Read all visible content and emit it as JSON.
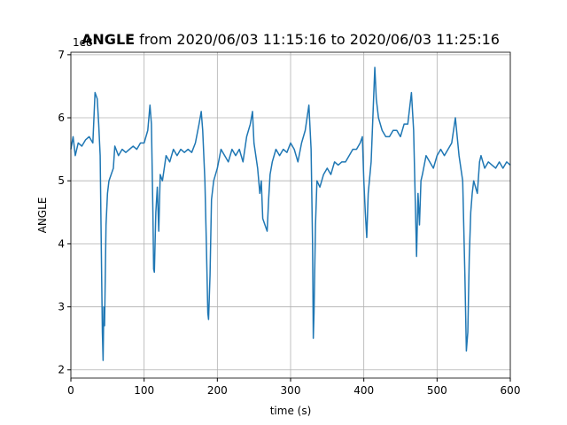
{
  "chart_data": {
    "type": "line",
    "title_bold": "ANGLE",
    "title": "from 2020/06/03 11:15:16 to 2020/06/03 11:25:16",
    "x_label": "time (s)",
    "y_label": "ANGLE",
    "y_offset_label": "1e8",
    "color": "#1f77b4",
    "grid": true,
    "xlim": [
      0,
      600
    ],
    "xticks": [
      0,
      100,
      200,
      300,
      400,
      500,
      600
    ],
    "ylim": [
      1.87,
      7.04
    ],
    "yticks": [
      2,
      3,
      4,
      5,
      6,
      7
    ],
    "x": [
      0,
      3,
      6,
      10,
      15,
      20,
      25,
      30,
      33,
      36,
      38,
      40,
      42,
      43,
      44,
      45,
      46,
      48,
      50,
      52,
      55,
      58,
      60,
      65,
      70,
      75,
      80,
      85,
      90,
      95,
      100,
      105,
      108,
      110,
      112,
      113,
      114,
      116,
      118,
      120,
      122,
      125,
      130,
      135,
      140,
      145,
      150,
      155,
      160,
      165,
      170,
      175,
      178,
      180,
      183,
      185,
      187,
      188,
      190,
      192,
      195,
      200,
      205,
      210,
      215,
      220,
      225,
      230,
      235,
      240,
      245,
      248,
      250,
      255,
      258,
      260,
      262,
      265,
      268,
      270,
      272,
      275,
      280,
      285,
      290,
      295,
      300,
      305,
      310,
      315,
      320,
      325,
      328,
      330,
      331,
      332,
      334,
      336,
      340,
      345,
      350,
      355,
      360,
      365,
      370,
      375,
      380,
      385,
      390,
      395,
      398,
      400,
      402,
      404,
      406,
      410,
      413,
      415,
      417,
      420,
      425,
      430,
      435,
      440,
      445,
      450,
      455,
      460,
      465,
      468,
      470,
      472,
      474,
      476,
      478,
      480,
      485,
      490,
      495,
      500,
      505,
      510,
      515,
      520,
      525,
      530,
      535,
      538,
      540,
      542,
      544,
      546,
      548,
      550,
      555,
      558,
      560,
      565,
      570,
      575,
      580,
      585,
      590,
      595,
      600
    ],
    "values": [
      5.5,
      5.7,
      5.4,
      5.6,
      5.55,
      5.65,
      5.7,
      5.6,
      6.4,
      6.3,
      5.9,
      5.4,
      3.5,
      2.6,
      2.15,
      3.0,
      2.7,
      4.3,
      4.8,
      5.0,
      5.1,
      5.2,
      5.55,
      5.4,
      5.5,
      5.45,
      5.5,
      5.55,
      5.5,
      5.6,
      5.6,
      5.8,
      6.2,
      5.9,
      4.5,
      3.6,
      3.55,
      4.5,
      4.9,
      4.2,
      5.1,
      5.0,
      5.4,
      5.3,
      5.5,
      5.4,
      5.5,
      5.45,
      5.5,
      5.45,
      5.6,
      5.9,
      6.1,
      5.8,
      5.0,
      4.0,
      2.9,
      2.8,
      3.5,
      4.7,
      5.0,
      5.2,
      5.5,
      5.4,
      5.3,
      5.5,
      5.4,
      5.5,
      5.3,
      5.7,
      5.9,
      6.1,
      5.6,
      5.2,
      4.8,
      5.0,
      4.4,
      4.3,
      4.2,
      4.7,
      5.1,
      5.3,
      5.5,
      5.4,
      5.5,
      5.45,
      5.6,
      5.5,
      5.3,
      5.6,
      5.8,
      6.2,
      5.5,
      4.0,
      2.5,
      2.9,
      4.3,
      5.0,
      4.9,
      5.1,
      5.2,
      5.1,
      5.3,
      5.25,
      5.3,
      5.3,
      5.4,
      5.5,
      5.5,
      5.6,
      5.7,
      5.0,
      4.5,
      4.1,
      4.8,
      5.3,
      6.2,
      6.8,
      6.3,
      6.0,
      5.8,
      5.7,
      5.7,
      5.8,
      5.8,
      5.7,
      5.9,
      5.9,
      6.4,
      5.8,
      4.8,
      3.8,
      4.8,
      4.3,
      5.0,
      5.1,
      5.4,
      5.3,
      5.2,
      5.4,
      5.5,
      5.4,
      5.5,
      5.6,
      6.0,
      5.4,
      5.0,
      3.5,
      2.3,
      2.6,
      3.8,
      4.5,
      4.8,
      5.0,
      4.8,
      5.3,
      5.4,
      5.2,
      5.3,
      5.25,
      5.2,
      5.3,
      5.2,
      5.3,
      5.25
    ]
  }
}
